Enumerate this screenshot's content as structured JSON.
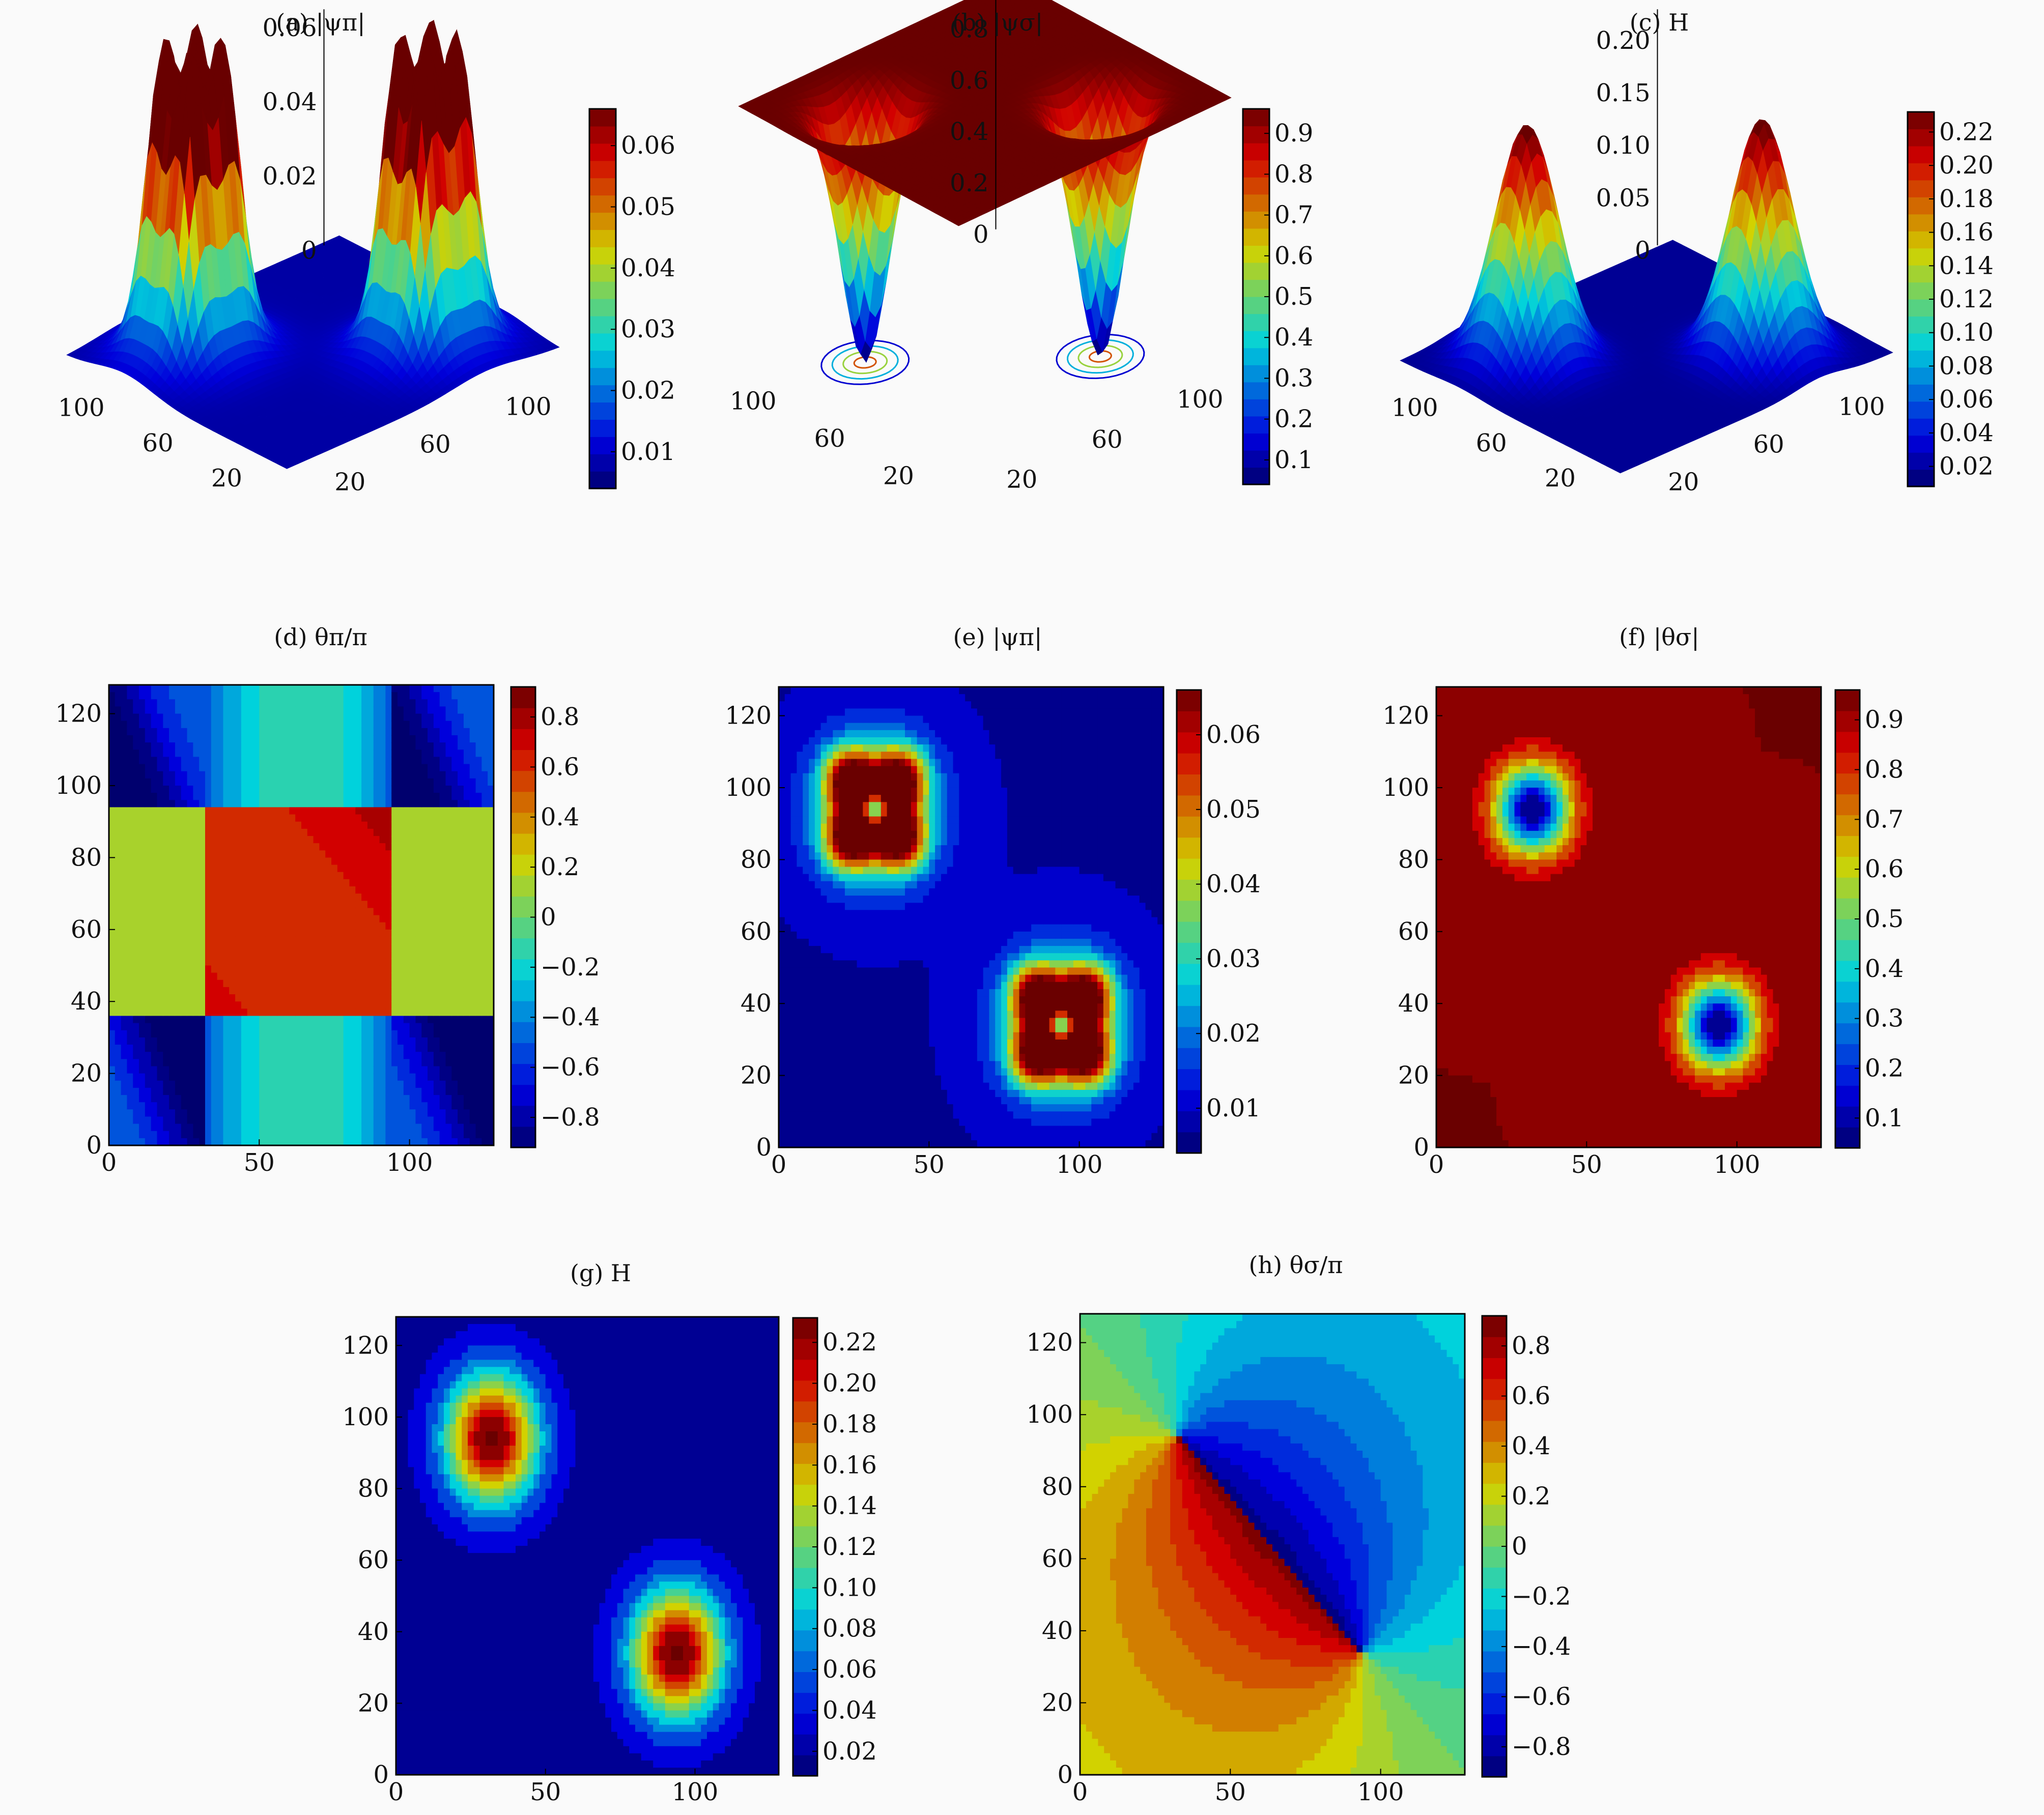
{
  "figure": {
    "panels": [
      {
        "id": "a",
        "title": "(a) |ψπ|",
        "kind": "surface"
      },
      {
        "id": "b",
        "title": "(b) |ψσ|",
        "kind": "surface"
      },
      {
        "id": "c",
        "title": "(c) H",
        "kind": "surface"
      },
      {
        "id": "d",
        "title": "(d) θπ/π",
        "kind": "contour"
      },
      {
        "id": "e",
        "title": "(e) |ψπ|",
        "kind": "contour"
      },
      {
        "id": "f",
        "title": "(f) |θσ|",
        "kind": "contour"
      },
      {
        "id": "g",
        "title": "(g) H",
        "kind": "contour"
      },
      {
        "id": "h",
        "title": "(h) θσ/π",
        "kind": "contour"
      }
    ]
  },
  "chart_data": [
    {
      "id": "a",
      "type": "heatmap",
      "style": "3d-surface-with-contours",
      "title": "(a) |ψπ|",
      "z_ticks": [
        "0",
        "0.02",
        "0.04",
        "0.06"
      ],
      "x_ticks": [
        "20",
        "60",
        "100"
      ],
      "y_ticks": [
        "20",
        "60",
        "100"
      ],
      "colorbar_ticks": [
        "0.06",
        "0.05",
        "0.04",
        "0.03",
        "0.02",
        "0.01"
      ],
      "zlim": [
        0,
        0.065
      ],
      "features": "two clusters of four peaks near (32,94) and (94,34), peak height ~0.065"
    },
    {
      "id": "b",
      "type": "heatmap",
      "style": "3d-surface-with-contours",
      "title": "(b) |ψσ|",
      "z_ticks": [
        "0",
        "0.2",
        "0.4",
        "0.6",
        "0.8"
      ],
      "x_ticks": [
        "20",
        "60",
        "100"
      ],
      "y_ticks": [
        "20",
        "60",
        "100"
      ],
      "colorbar_ticks": [
        "0.9",
        "0.8",
        "0.7",
        "0.6",
        "0.5",
        "0.4",
        "0.3",
        "0.2",
        "0.1"
      ],
      "zlim": [
        0,
        1.0
      ],
      "features": "flat plateau at ~1.0 with two deep wells to 0 near (32,94) and (94,34)"
    },
    {
      "id": "c",
      "type": "heatmap",
      "style": "3d-surface-with-contours",
      "title": "(c) H",
      "z_ticks": [
        "0",
        "0.05",
        "0.10",
        "0.15",
        "0.20"
      ],
      "x_ticks": [
        "20",
        "60",
        "100"
      ],
      "y_ticks": [
        "20",
        "60",
        "100"
      ],
      "colorbar_ticks": [
        "0.22",
        "0.20",
        "0.18",
        "0.16",
        "0.14",
        "0.12",
        "0.10",
        "0.08",
        "0.06",
        "0.04",
        "0.02"
      ],
      "zlim": [
        0,
        0.23
      ],
      "features": "two peaks of height ~0.23 near (32,94) and (94,34)"
    },
    {
      "id": "d",
      "type": "heatmap",
      "title": "(d) θπ/π",
      "x_ticks": [
        "0",
        "50",
        "100"
      ],
      "y_ticks": [
        "0",
        "20",
        "40",
        "60",
        "80",
        "100",
        "120"
      ],
      "xlim": [
        0,
        128
      ],
      "ylim": [
        0,
        128
      ],
      "colorbar_ticks": [
        "0.8",
        "0.6",
        "0.4",
        "0.2",
        "0",
        "−0.2",
        "−0.4",
        "−0.6",
        "−0.8"
      ],
      "clim": [
        -1,
        1
      ]
    },
    {
      "id": "e",
      "type": "heatmap",
      "title": "(e) |ψπ|",
      "x_ticks": [
        "0",
        "50",
        "100"
      ],
      "y_ticks": [
        "0",
        "20",
        "40",
        "60",
        "80",
        "100",
        "120"
      ],
      "xlim": [
        0,
        128
      ],
      "ylim": [
        0,
        128
      ],
      "colorbar_ticks": [
        "0.06",
        "0.05",
        "0.04",
        "0.03",
        "0.02",
        "0.01"
      ],
      "clim": [
        0,
        0.065
      ]
    },
    {
      "id": "f",
      "type": "heatmap",
      "title": "(f) |θσ|",
      "x_ticks": [
        "0",
        "50",
        "100"
      ],
      "y_ticks": [
        "0",
        "20",
        "40",
        "60",
        "80",
        "100",
        "120"
      ],
      "xlim": [
        0,
        128
      ],
      "ylim": [
        0,
        128
      ],
      "colorbar_ticks": [
        "0.9",
        "0.8",
        "0.7",
        "0.6",
        "0.5",
        "0.4",
        "0.3",
        "0.2",
        "0.1"
      ],
      "clim": [
        0,
        1.0
      ]
    },
    {
      "id": "g",
      "type": "heatmap",
      "title": "(g) H",
      "x_ticks": [
        "0",
        "50",
        "100"
      ],
      "y_ticks": [
        "0",
        "20",
        "40",
        "60",
        "80",
        "100",
        "120"
      ],
      "xlim": [
        0,
        128
      ],
      "ylim": [
        0,
        128
      ],
      "colorbar_ticks": [
        "0.22",
        "0.20",
        "0.18",
        "0.16",
        "0.14",
        "0.12",
        "0.10",
        "0.08",
        "0.06",
        "0.04",
        "0.02"
      ],
      "clim": [
        0,
        0.23
      ]
    },
    {
      "id": "h",
      "type": "heatmap",
      "title": "(h) θσ/π",
      "x_ticks": [
        "0",
        "50",
        "100"
      ],
      "y_ticks": [
        "0",
        "20",
        "40",
        "60",
        "80",
        "100",
        "120"
      ],
      "xlim": [
        0,
        128
      ],
      "ylim": [
        0,
        128
      ],
      "colorbar_ticks": [
        "0.8",
        "0.6",
        "0.4",
        "0.2",
        "0",
        "−0.2",
        "−0.4",
        "−0.6",
        "−0.8"
      ],
      "clim": [
        -1,
        1
      ]
    }
  ]
}
